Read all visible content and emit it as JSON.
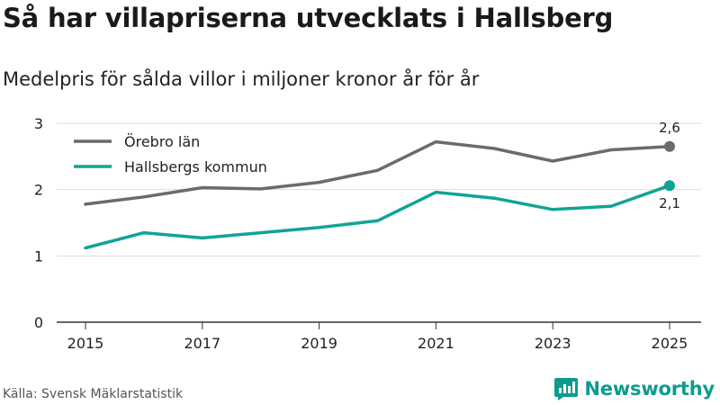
{
  "header": {
    "title": "Så har villapriserna utvecklats i Hallsberg",
    "subtitle": "Medelpris för sålda villor i miljoner kronor år för år"
  },
  "footer": {
    "source": "Källa: Svensk Mäklarstatistik",
    "brand": "Newsworthy",
    "brand_icon": "bar-chart-speech-bubble-icon"
  },
  "colors": {
    "orebro": "#6b6a70",
    "hallsberg": "#11a496",
    "grid": "#dddddd",
    "axis": "#333333",
    "text": "#222222",
    "brand": "#0e9b8f"
  },
  "chart_data": {
    "type": "line",
    "x": [
      2015,
      2016,
      2017,
      2018,
      2019,
      2020,
      2021,
      2022,
      2023,
      2024,
      2025
    ],
    "series": [
      {
        "name": "Örebro län",
        "color": "#6b6a70",
        "values": [
          1.78,
          1.89,
          2.03,
          2.01,
          2.11,
          2.29,
          2.72,
          2.62,
          2.43,
          2.6,
          2.65
        ],
        "end_label": "2,6"
      },
      {
        "name": "Hallsbergs kommun",
        "color": "#11a496",
        "values": [
          1.12,
          1.35,
          1.27,
          1.35,
          1.43,
          1.53,
          1.96,
          1.87,
          1.7,
          1.75,
          2.06
        ],
        "end_label": "2,1"
      }
    ],
    "x_ticks": [
      2015,
      2017,
      2019,
      2021,
      2023,
      2025
    ],
    "x_tick_labels": [
      "2015",
      "2017",
      "2019",
      "2021",
      "2023",
      "2025"
    ],
    "y_ticks": [
      0,
      1,
      2,
      3
    ],
    "y_tick_labels": [
      "0",
      "1",
      "2",
      "3"
    ],
    "xlim": [
      2014.5,
      2025.5
    ],
    "ylim": [
      0,
      3
    ],
    "title": "Så har villapriserna utvecklats i Hallsberg",
    "subtitle": "Medelpris för sålda villor i miljoner kronor år för år",
    "xlabel": "",
    "ylabel": "",
    "grid": true,
    "legend_position": "top-left"
  }
}
